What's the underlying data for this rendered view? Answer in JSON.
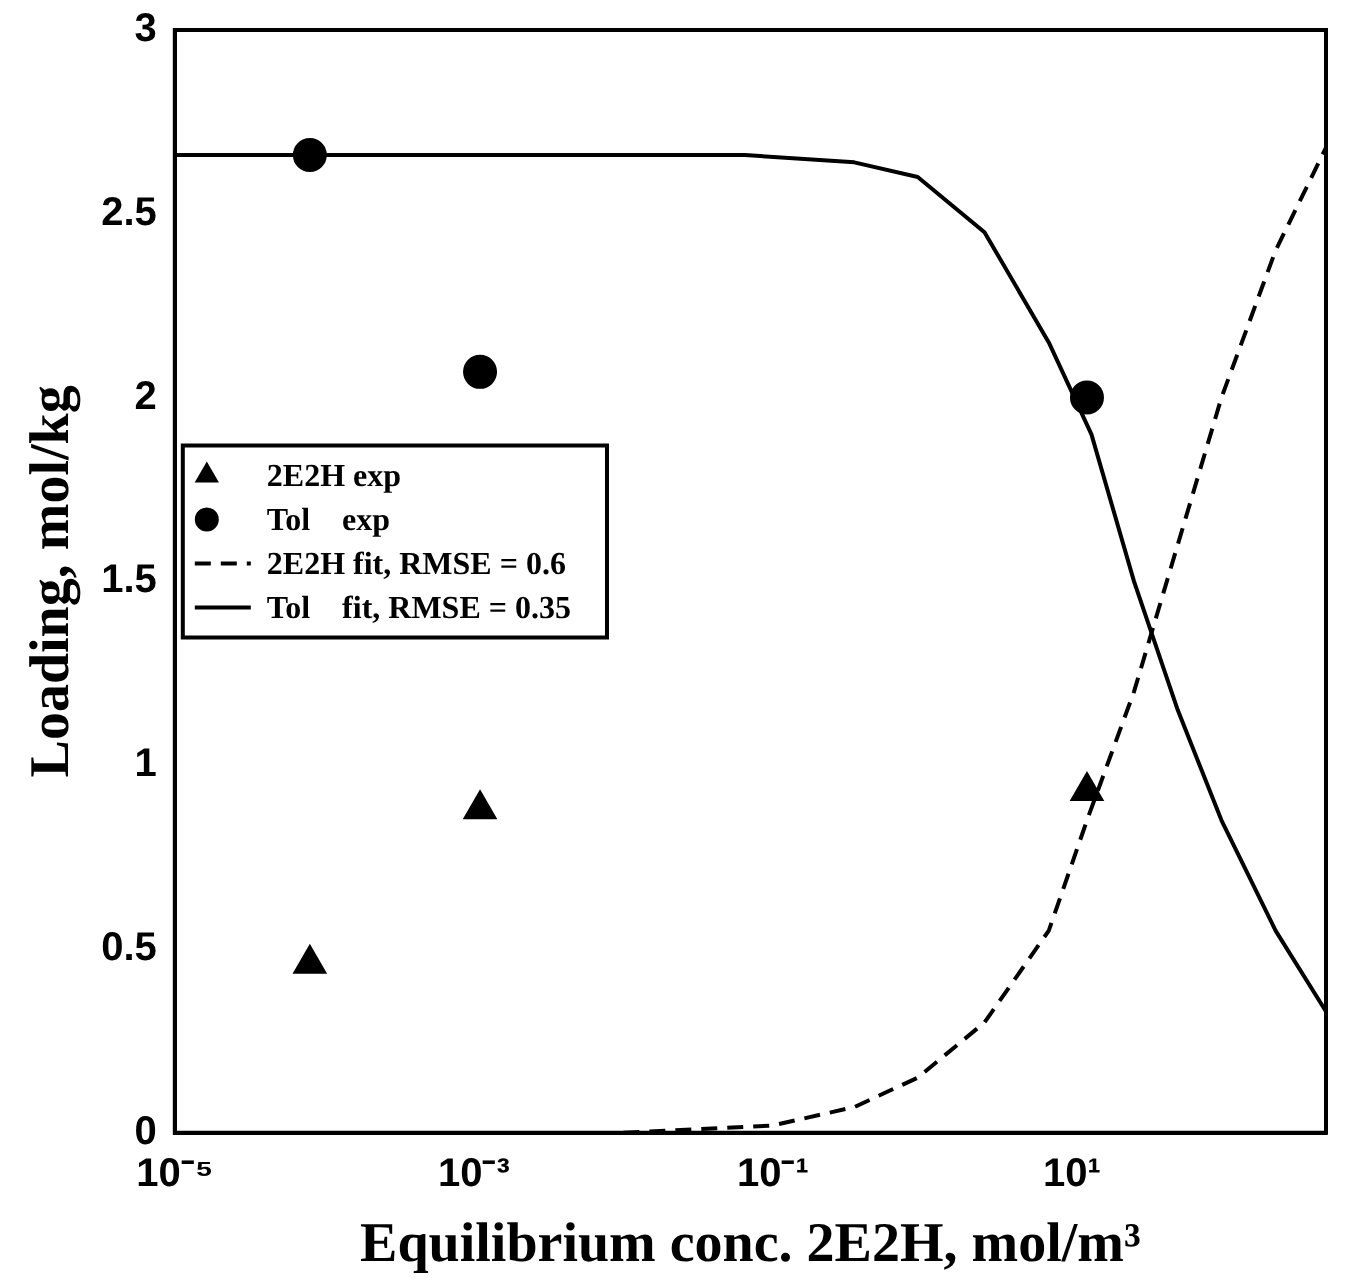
{
  "chart_data": {
    "type": "scatter",
    "xlabel": "Equilibrium conc. 2E2H, mol/m³",
    "ylabel": "Loading, mol/kg",
    "log": "x",
    "grid": false,
    "legend": "left",
    "xlim": [
      1e-05,
      500
    ],
    "xticks": [
      {
        "value": 1e-05,
        "label": "10⁻⁵"
      },
      {
        "value": 0.001,
        "label": "10⁻³"
      },
      {
        "value": 0.1,
        "label": "10⁻¹"
      },
      {
        "value": 10,
        "label": "10¹"
      }
    ],
    "ylim": [
      0,
      3
    ],
    "yticks": [
      0,
      0.5,
      1,
      1.5,
      2,
      2.5,
      3
    ],
    "series": [
      {
        "name": "2E2H exp",
        "marker": "triangle",
        "color": "#000000",
        "x": [
          8e-05,
          0.0011,
          12.6
        ],
        "values": [
          0.46,
          0.88,
          0.93
        ]
      },
      {
        "name": "Tol    exp",
        "marker": "circle",
        "color": "#000000",
        "x": [
          8e-05,
          0.0011,
          12.6
        ],
        "values": [
          2.66,
          2.07,
          2.0
        ]
      },
      {
        "name": "2E2H fit, RMSE = 0.6",
        "type": "line",
        "line_style": "dashed",
        "marker": "none",
        "color": "#000000",
        "x": [
          0.01,
          0.1,
          0.35,
          0.93,
          2.6,
          7,
          12.6,
          26,
          51,
          100,
          230,
          500
        ],
        "values": [
          0,
          0.02,
          0.07,
          0.15,
          0.3,
          0.55,
          0.85,
          1.2,
          1.6,
          2.0,
          2.4,
          2.68
        ]
      },
      {
        "name": "Tol    fit, RMSE = 0.35",
        "type": "line",
        "line_style": "solid",
        "marker": "none",
        "color": "#000000",
        "x": [
          1e-05,
          0.065,
          0.35,
          0.93,
          2.6,
          7,
          13.5,
          26,
          51,
          100,
          230,
          500
        ],
        "values": [
          2.66,
          2.66,
          2.64,
          2.6,
          2.45,
          2.15,
          1.9,
          1.5,
          1.15,
          0.85,
          0.55,
          0.33
        ]
      }
    ]
  }
}
